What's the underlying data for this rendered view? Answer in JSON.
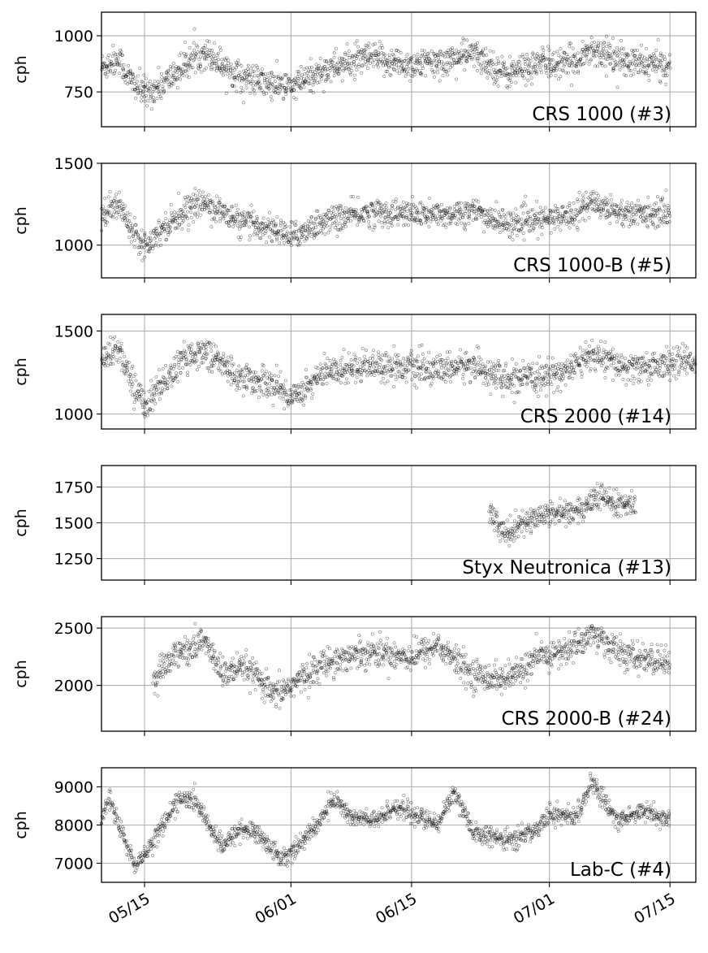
{
  "chart_data": [
    {
      "type": "scatter",
      "title": "",
      "label": "CRS 1000 (#3)",
      "xlabel": "",
      "ylabel": "cph",
      "ylim": [
        595,
        1105
      ],
      "yticks": [
        750,
        1000
      ],
      "y_tick_labels": [
        "750",
        "1000"
      ],
      "grid": true,
      "x_range": [
        "2021-05-10",
        "2021-07-18"
      ],
      "x_start": "2021-05-10",
      "x_end": "2021-07-15",
      "x": [
        "2021-05-10",
        "2021-05-12",
        "2021-05-13",
        "2021-05-15",
        "2021-05-17",
        "2021-05-20",
        "2021-05-22",
        "2021-05-26",
        "2021-05-30",
        "2021-06-01",
        "2021-06-05",
        "2021-06-10",
        "2021-06-15",
        "2021-06-18",
        "2021-06-22",
        "2021-06-26",
        "2021-06-30",
        "2021-07-03",
        "2021-07-06",
        "2021-07-10",
        "2021-07-15"
      ],
      "y": [
        860,
        900,
        820,
        740,
        780,
        880,
        930,
        820,
        780,
        770,
        850,
        900,
        870,
        880,
        920,
        830,
        880,
        870,
        940,
        880,
        870
      ],
      "spread": 45
    },
    {
      "type": "scatter",
      "title": "",
      "label": "CRS 1000-B (#5)",
      "xlabel": "",
      "ylabel": "cph",
      "ylim": [
        800,
        1500
      ],
      "yticks": [
        1000,
        1500
      ],
      "y_tick_labels": [
        "1000",
        "1500"
      ],
      "grid": true,
      "x_range": [
        "2021-05-10",
        "2021-07-18"
      ],
      "x_start": "2021-05-10",
      "x_end": "2021-07-15",
      "x": [
        "2021-05-10",
        "2021-05-12",
        "2021-05-13",
        "2021-05-15",
        "2021-05-17",
        "2021-05-20",
        "2021-05-22",
        "2021-05-26",
        "2021-05-30",
        "2021-06-01",
        "2021-06-05",
        "2021-06-10",
        "2021-06-15",
        "2021-06-18",
        "2021-06-22",
        "2021-06-26",
        "2021-06-30",
        "2021-07-03",
        "2021-07-06",
        "2021-07-10",
        "2021-07-15"
      ],
      "y": [
        1180,
        1250,
        1150,
        1000,
        1100,
        1220,
        1260,
        1140,
        1100,
        1050,
        1150,
        1200,
        1190,
        1180,
        1210,
        1130,
        1150,
        1180,
        1260,
        1190,
        1200
      ],
      "spread": 55
    },
    {
      "type": "scatter",
      "title": "",
      "label": "CRS 2000 (#14)",
      "xlabel": "",
      "ylabel": "cph",
      "ylim": [
        910,
        1600
      ],
      "yticks": [
        1000,
        1500
      ],
      "y_tick_labels": [
        "1000",
        "1500"
      ],
      "grid": true,
      "x_range": [
        "2021-05-10",
        "2021-07-18"
      ],
      "x_start": "2021-05-10",
      "x_end": "2021-07-18",
      "x": [
        "2021-05-10",
        "2021-05-12",
        "2021-05-13",
        "2021-05-15",
        "2021-05-17",
        "2021-05-20",
        "2021-05-22",
        "2021-05-26",
        "2021-05-30",
        "2021-06-01",
        "2021-06-05",
        "2021-06-10",
        "2021-06-15",
        "2021-06-18",
        "2021-06-22",
        "2021-06-26",
        "2021-06-30",
        "2021-07-03",
        "2021-07-06",
        "2021-07-10",
        "2021-07-15",
        "2021-07-18"
      ],
      "y": [
        1330,
        1400,
        1250,
        1050,
        1180,
        1350,
        1380,
        1220,
        1180,
        1100,
        1250,
        1300,
        1280,
        1260,
        1300,
        1200,
        1220,
        1260,
        1360,
        1270,
        1300,
        1330
      ],
      "spread": 60
    },
    {
      "type": "scatter",
      "title": "",
      "label": "Styx Neutronica (#13)",
      "xlabel": "",
      "ylabel": "cph",
      "ylim": [
        1100,
        1900
      ],
      "yticks": [
        1250,
        1500,
        1750
      ],
      "y_tick_labels": [
        "1250",
        "1500",
        "1750"
      ],
      "grid": true,
      "x_range": [
        "2021-05-10",
        "2021-07-18"
      ],
      "x_start": "2021-06-24",
      "x_end": "2021-07-11",
      "x": [
        "2021-06-24",
        "2021-06-26",
        "2021-06-28",
        "2021-07-01",
        "2021-07-04",
        "2021-07-07",
        "2021-07-09",
        "2021-07-11"
      ],
      "y": [
        1560,
        1430,
        1500,
        1570,
        1580,
        1680,
        1620,
        1640
      ],
      "spread": 60
    },
    {
      "type": "scatter",
      "title": "",
      "label": "CRS 2000-B (#24)",
      "xlabel": "",
      "ylabel": "cph",
      "ylim": [
        1600,
        2600
      ],
      "yticks": [
        2000,
        2500
      ],
      "y_tick_labels": [
        "2000",
        "2500"
      ],
      "grid": true,
      "x_range": [
        "2021-05-10",
        "2021-07-18"
      ],
      "x_start": "2021-05-16",
      "x_end": "2021-07-15",
      "x": [
        "2021-05-16",
        "2021-05-18",
        "2021-05-20",
        "2021-05-22",
        "2021-05-24",
        "2021-05-27",
        "2021-05-30",
        "2021-06-01",
        "2021-06-05",
        "2021-06-10",
        "2021-06-15",
        "2021-06-18",
        "2021-06-22",
        "2021-06-26",
        "2021-06-30",
        "2021-07-03",
        "2021-07-06",
        "2021-07-10",
        "2021-07-15"
      ],
      "y": [
        2000,
        2250,
        2300,
        2400,
        2100,
        2150,
        1900,
        2000,
        2200,
        2300,
        2250,
        2350,
        2100,
        2050,
        2250,
        2300,
        2450,
        2250,
        2200
      ],
      "spread": 85
    },
    {
      "type": "scatter",
      "title": "",
      "label": "Lab-C (#4)",
      "xlabel": "",
      "ylabel": "cph",
      "ylim": [
        6500,
        9500
      ],
      "yticks": [
        7000,
        8000,
        9000
      ],
      "y_tick_labels": [
        "7000",
        "8000",
        "9000"
      ],
      "grid": true,
      "x_range": [
        "2021-05-10",
        "2021-07-18"
      ],
      "x_start": "2021-05-10",
      "x_end": "2021-07-15",
      "x": [
        "2021-05-10",
        "2021-05-11",
        "2021-05-12",
        "2021-05-14",
        "2021-05-16",
        "2021-05-18",
        "2021-05-19",
        "2021-05-21",
        "2021-05-24",
        "2021-05-26",
        "2021-05-28",
        "2021-05-31",
        "2021-06-02",
        "2021-06-04",
        "2021-06-06",
        "2021-06-08",
        "2021-06-11",
        "2021-06-13",
        "2021-06-15",
        "2021-06-18",
        "2021-06-20",
        "2021-06-22",
        "2021-06-26",
        "2021-06-29",
        "2021-07-01",
        "2021-07-04",
        "2021-07-06",
        "2021-07-09",
        "2021-07-12",
        "2021-07-15"
      ],
      "y": [
        8100,
        8700,
        8000,
        6900,
        7600,
        8300,
        8700,
        8600,
        7400,
        7900,
        7800,
        7100,
        7500,
        8000,
        8700,
        8200,
        8100,
        8500,
        8300,
        8000,
        8900,
        7800,
        7600,
        7800,
        8300,
        8200,
        9100,
        8100,
        8400,
        8100
      ],
      "spread": 170
    }
  ],
  "x_axis": {
    "ticks": [
      "2021-05-15",
      "2021-06-01",
      "2021-06-15",
      "2021-07-01",
      "2021-07-15"
    ],
    "tick_labels": [
      "05/15",
      "06/01",
      "06/15",
      "07/01",
      "07/15"
    ]
  }
}
